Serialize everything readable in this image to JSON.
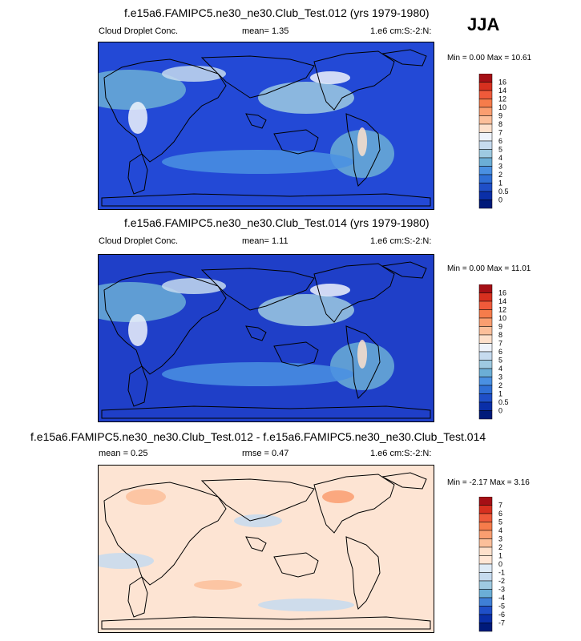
{
  "season": "JJA",
  "panels": [
    {
      "title": "f.e15a6.FAMIPC5.ne30_ne30.Club_Test.012 (yrs 1979-1980)",
      "left": "Cloud Droplet Conc.",
      "mid": "mean=   1.35",
      "right": "1.e6 cm:S:-2:N:",
      "minmax": "Min =   0.00 Max =  10.61",
      "levels": [
        "16",
        "14",
        "12",
        "10",
        "9",
        "8",
        "7",
        "6",
        "5",
        "4",
        "3",
        "2",
        "1",
        "0.5",
        "0"
      ],
      "colors": [
        "#a50f15",
        "#d7301f",
        "#ef5a3a",
        "#f67c4b",
        "#fa9e70",
        "#fcbf9a",
        "#fde0cb",
        "#eef3fb",
        "#c6dbef",
        "#9ecae1",
        "#6baed6",
        "#4a90e2",
        "#2f6fd6",
        "#1f4fc8",
        "#0a2fa8",
        "#001a7a"
      ],
      "map_bg": "#2349d6"
    },
    {
      "title": "f.e15a6.FAMIPC5.ne30_ne30.Club_Test.014 (yrs 1979-1980)",
      "left": "Cloud Droplet Conc.",
      "mid": "mean=   1.11",
      "right": "1.e6 cm:S:-2:N:",
      "minmax": "Min =   0.00 Max =  11.01",
      "levels": [
        "16",
        "14",
        "12",
        "10",
        "9",
        "8",
        "7",
        "6",
        "5",
        "4",
        "3",
        "2",
        "1",
        "0.5",
        "0"
      ],
      "colors": [
        "#a50f15",
        "#d7301f",
        "#ef5a3a",
        "#f67c4b",
        "#fa9e70",
        "#fcbf9a",
        "#fde0cb",
        "#eef3fb",
        "#c6dbef",
        "#9ecae1",
        "#6baed6",
        "#4a90e2",
        "#2f6fd6",
        "#1f4fc8",
        "#0a2fa8",
        "#001a7a"
      ],
      "map_bg": "#1f3fc8"
    },
    {
      "title": "f.e15a6.FAMIPC5.ne30_ne30.Club_Test.012 - f.e15a6.FAMIPC5.ne30_ne30.Club_Test.014",
      "left": "mean =   0.25",
      "mid": "rmse =   0.47",
      "right": "1.e6 cm:S:-2:N:",
      "minmax": "Min =  -2.17 Max =   3.16",
      "levels": [
        "7",
        "6",
        "5",
        "4",
        "3",
        "2",
        "1",
        "0",
        "-1",
        "-2",
        "-3",
        "-4",
        "-5",
        "-6",
        "-7"
      ],
      "colors": [
        "#a50f15",
        "#d7301f",
        "#ef5a3a",
        "#f67c4b",
        "#fa9e70",
        "#fcbf9a",
        "#fde0cb",
        "#ffe6d5",
        "#deebf7",
        "#c6dbef",
        "#9ecae1",
        "#6baed6",
        "#3f7fd6",
        "#1f4fc8",
        "#0a2fa8",
        "#001a7a"
      ],
      "map_bg": "#fde4d3"
    }
  ]
}
